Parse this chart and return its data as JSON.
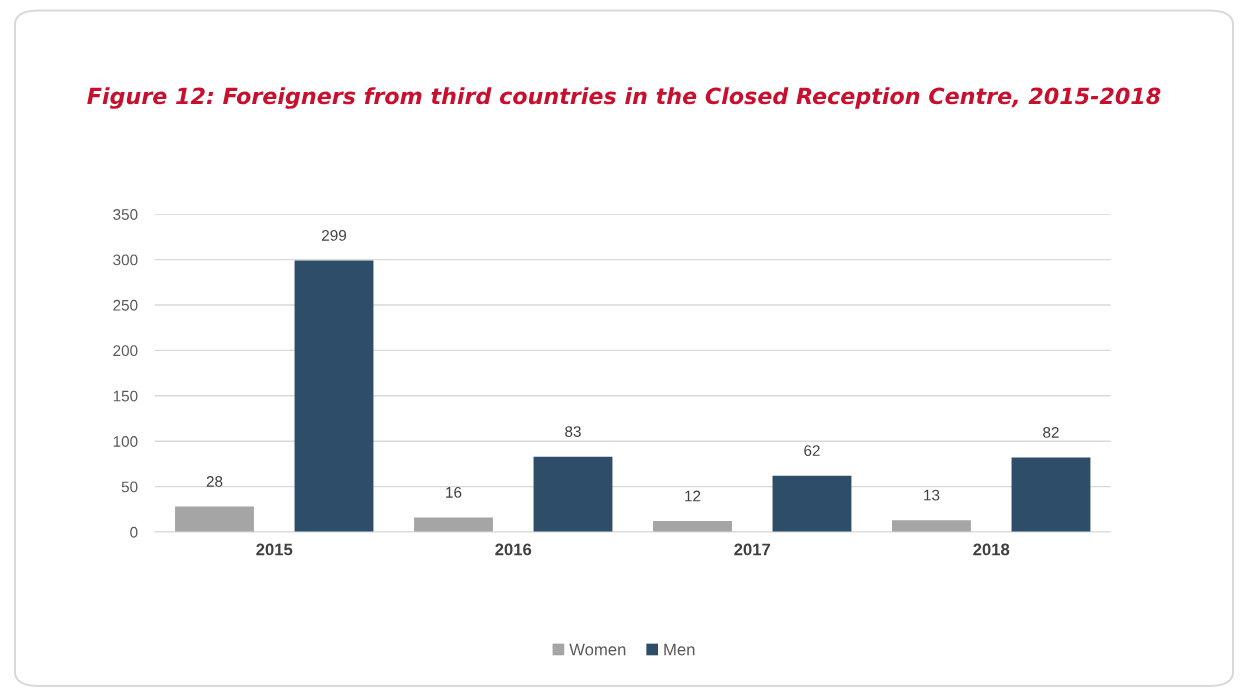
{
  "chart_data": {
    "type": "bar",
    "title": "Figure 12: Foreigners from third countries in the Closed Reception Centre, 2015-2018",
    "categories": [
      "2015",
      "2016",
      "2017",
      "2018"
    ],
    "series": [
      {
        "name": "Women",
        "color": "#a5a5a5",
        "values": [
          28,
          16,
          12,
          13
        ]
      },
      {
        "name": "Men",
        "color": "#2e4d69",
        "values": [
          299,
          83,
          62,
          82
        ]
      }
    ],
    "ylim": [
      0,
      350
    ],
    "yticks": [
      0,
      50,
      100,
      150,
      200,
      250,
      300,
      350
    ],
    "grid": "y",
    "legend": "bottom",
    "data_labels": true
  }
}
